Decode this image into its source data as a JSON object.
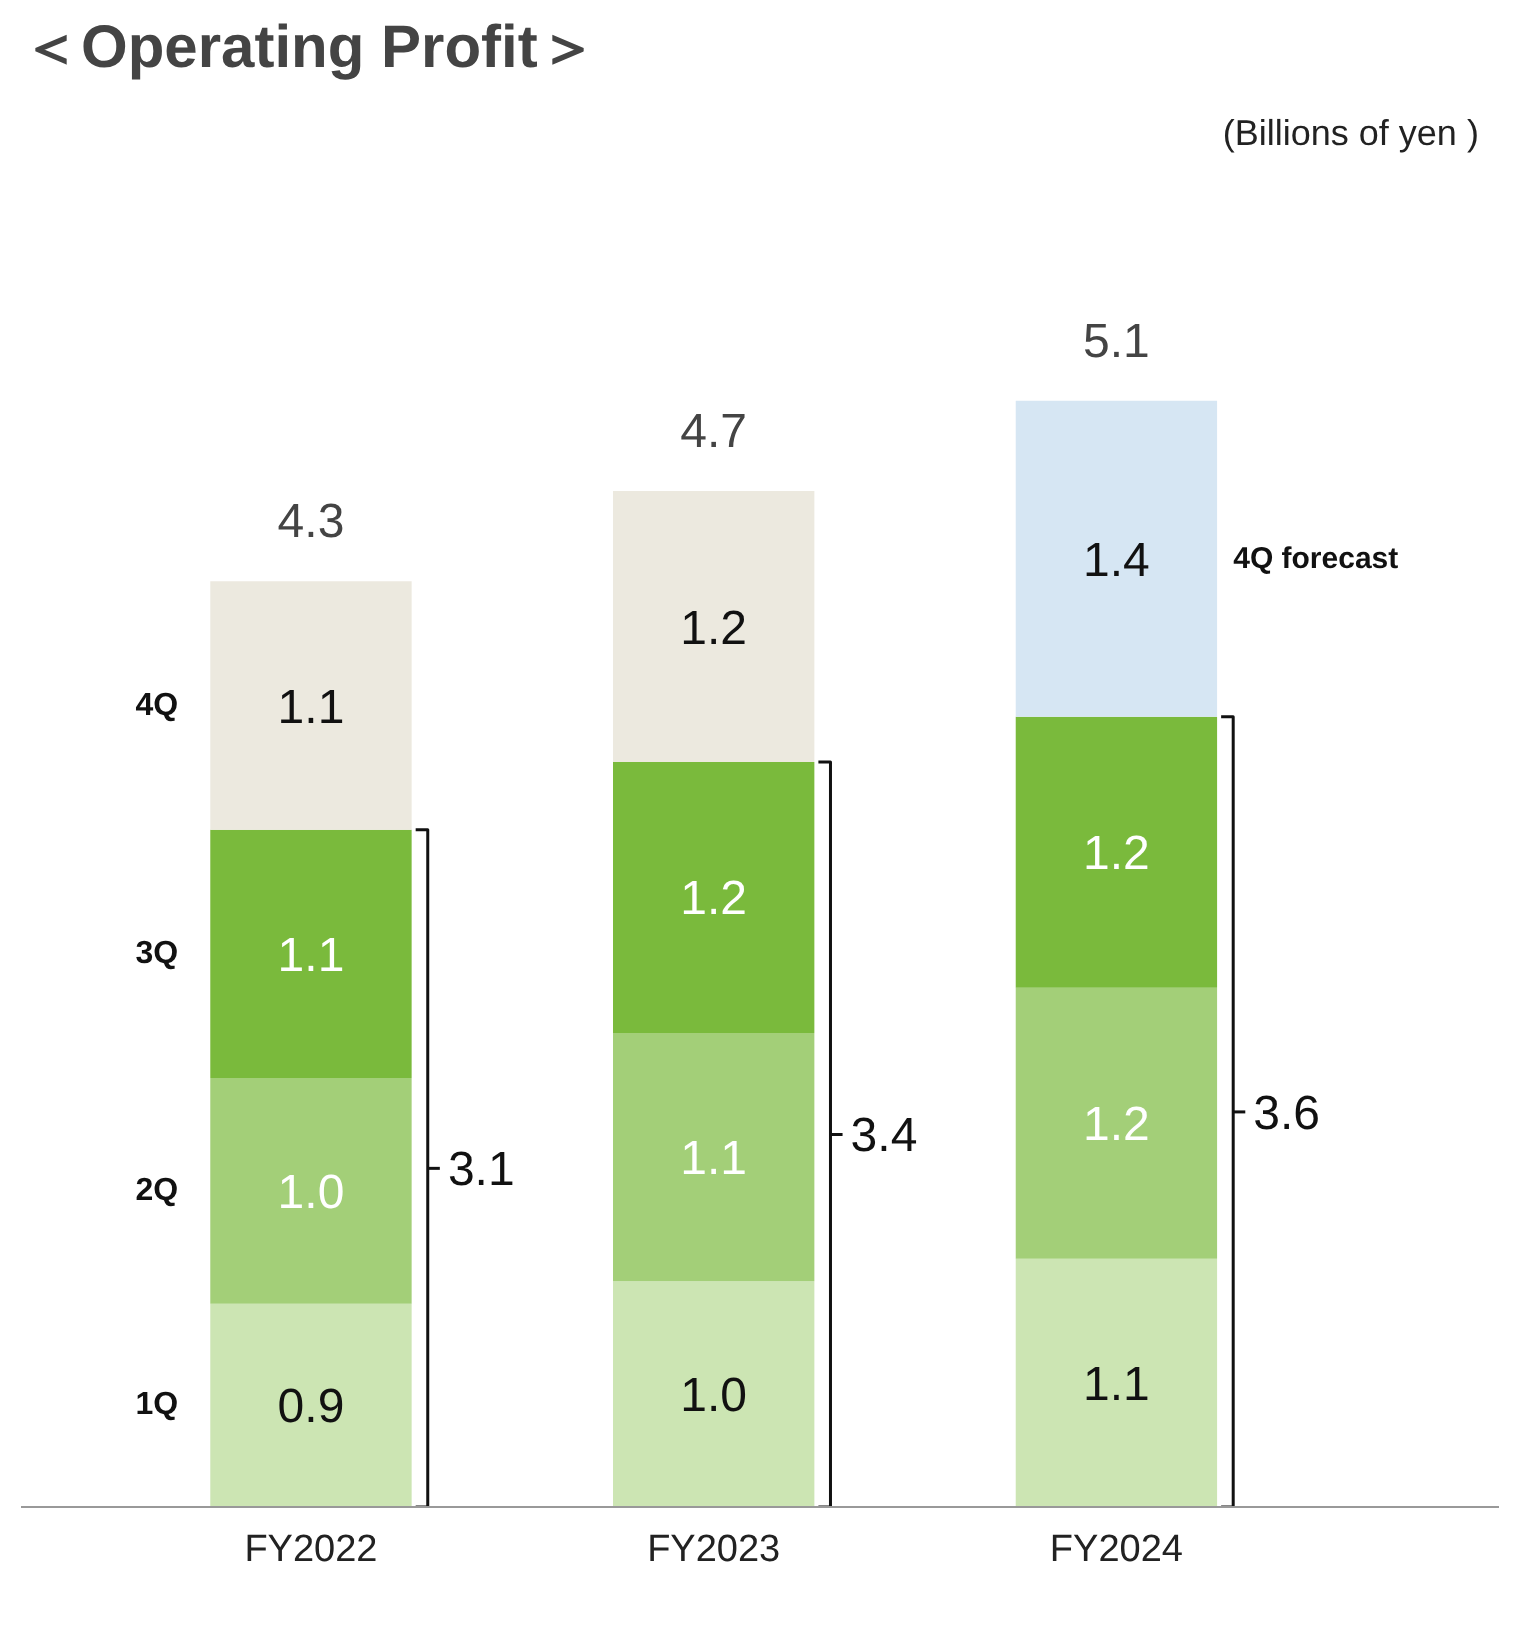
{
  "chart_data": {
    "type": "bar",
    "title": "＜Operating Profit＞",
    "stacked": true,
    "grid": false,
    "categories": [
      "FY2022",
      "FY2023",
      "FY2024"
    ],
    "series": [
      {
        "name": "1Q",
        "color": "#cce5b3",
        "values": [
          0.9,
          1.0,
          1.1
        ],
        "value_labels": [
          "0.9",
          "1.0",
          "1.1"
        ]
      },
      {
        "name": "2Q",
        "color": "#a3cf78",
        "values": [
          1.0,
          1.1,
          1.2
        ],
        "value_labels": [
          "1.0",
          "1.1",
          "1.2"
        ]
      },
      {
        "name": "3Q",
        "color": "#7aba3c",
        "values": [
          1.1,
          1.2,
          1.2
        ],
        "value_labels": [
          "1.1",
          "1.2",
          "1.2"
        ]
      },
      {
        "name": "4Q",
        "colors": [
          "#ece9df",
          "#ece9df",
          "#d6e6f3"
        ],
        "values": [
          1.1,
          1.2,
          1.4
        ],
        "value_labels": [
          "1.1",
          "1.2",
          "1.4"
        ]
      }
    ],
    "totals": [
      "4.3",
      "4.7",
      "5.1"
    ],
    "annotations": [
      "(Billions of yen )",
      "4Q forecast",
      "3.1",
      "3.4",
      "3.6"
    ]
  }
}
